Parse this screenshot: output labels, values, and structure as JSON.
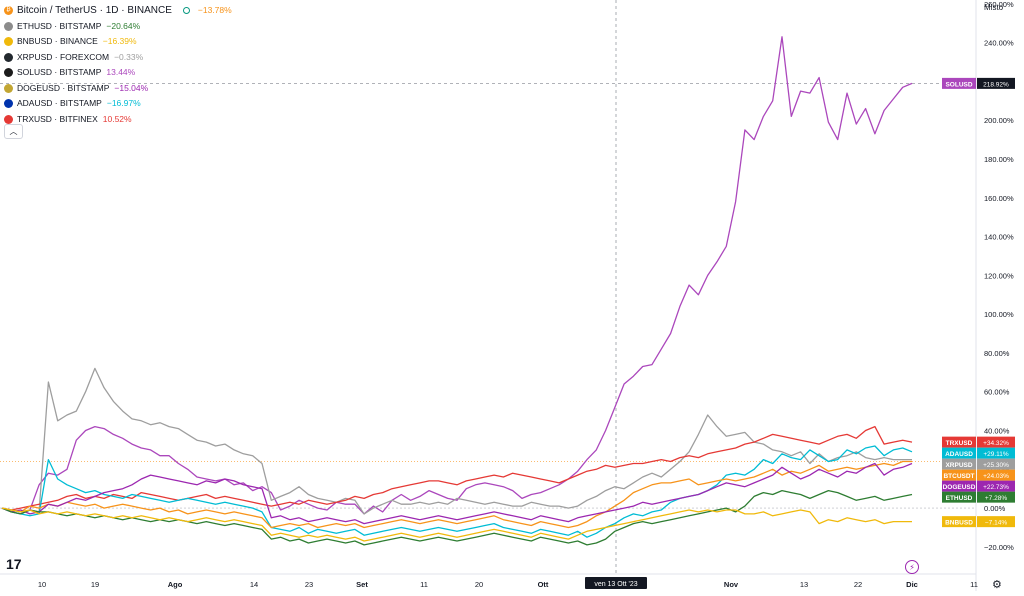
{
  "legend": {
    "main": {
      "name": "Bitcoin / TetherUS · 1D · BINANCE",
      "change": "−13.78%",
      "color": "#f7931a"
    },
    "items": [
      {
        "icon": "ethereum-icon",
        "name": "ETHUSD · BITSTAMP",
        "change": "−20.64%",
        "color": "#2e7d32",
        "icon_color": "#8c8c8c"
      },
      {
        "icon": "binance-icon",
        "name": "BNBUSD · BINANCE",
        "change": "−16.39%",
        "color": "#f0b90b",
        "icon_color": "#f0b90b"
      },
      {
        "icon": "xrp-icon",
        "name": "XRPUSD · FOREXCOM",
        "change": "−0.33%",
        "color": "#9e9e9e",
        "icon_color": "#23292f"
      },
      {
        "icon": "solana-icon",
        "name": "SOLUSD · BITSTAMP",
        "change": "13.44%",
        "color": "#ab47bc",
        "icon_color": "#1c1c1c"
      },
      {
        "icon": "dogecoin-icon",
        "name": "DOGEUSD · BITSTAMP",
        "change": "−15.04%",
        "color": "#9c27b0",
        "icon_color": "#c2a633"
      },
      {
        "icon": "cardano-icon",
        "name": "ADAUSD · BITSTAMP",
        "change": "−16.97%",
        "color": "#00bcd4",
        "icon_color": "#0033ad"
      },
      {
        "icon": "tron-icon",
        "name": "TRXUSD · BITFINEX",
        "change": "10.52%",
        "color": "#e53935",
        "icon_color": "#e53935"
      }
    ]
  },
  "scale_mode": "Misto",
  "crosshair_date": "ven 13 Ott '23",
  "chart_data": {
    "type": "line",
    "x_ticks": [
      "10",
      "19",
      "Ago",
      "14",
      "23",
      "Set",
      "11",
      "20",
      "Ott",
      "Nov",
      "13",
      "22",
      "Dic",
      "11"
    ],
    "y_ticks": [
      "260.00%",
      "240.00%",
      "220.00%",
      "200.00%",
      "180.00%",
      "160.00%",
      "140.00%",
      "120.00%",
      "100.00%",
      "80.00%",
      "60.00%",
      "40.00%",
      "20.00%",
      "0.00%",
      "−20.00%"
    ],
    "ylim": [
      -34,
      262
    ],
    "y_axis_unit": "%",
    "series": [
      {
        "name": "SOLUSD",
        "color": "#ab47bc",
        "label": "SOLUSD",
        "value_label": "218.92%",
        "values": [
          0,
          -2,
          -3,
          -1,
          12,
          18,
          17,
          20,
          35,
          40,
          42,
          41,
          38,
          36,
          33,
          31,
          30,
          27,
          27,
          23,
          20,
          16,
          15,
          14,
          15,
          12,
          13,
          9,
          11,
          8,
          -1,
          1,
          4,
          2,
          0,
          -1,
          3,
          2,
          2,
          -3,
          1,
          -2,
          4,
          7,
          4,
          6,
          9,
          7,
          5,
          4,
          10,
          12,
          13,
          12,
          11,
          9,
          5,
          7,
          8,
          10,
          12,
          15,
          19,
          25,
          30,
          40,
          52,
          64,
          68,
          73,
          74,
          82,
          90,
          104,
          115,
          110,
          120,
          127,
          135,
          158,
          195,
          190,
          202,
          210,
          243,
          202,
          215,
          214,
          222,
          199,
          190,
          214,
          198,
          206,
          193,
          205,
          211,
          217,
          219
        ]
      },
      {
        "name": "XRPUSD",
        "color": "#9e9e9e",
        "label": "XRPUSD",
        "value_label": "+25.30%",
        "values": [
          0,
          -1,
          -2,
          -1,
          -2,
          65,
          45,
          48,
          50,
          60,
          72,
          62,
          55,
          50,
          46,
          45,
          43,
          44,
          42,
          41,
          38,
          35,
          34,
          32,
          33,
          30,
          28,
          27,
          23,
          4,
          6,
          8,
          11,
          7,
          5,
          4,
          3,
          5,
          4,
          -3,
          0,
          2,
          4,
          2,
          2,
          3,
          2,
          3,
          2,
          5,
          4,
          3,
          2,
          3,
          2,
          1,
          1,
          3,
          2,
          1,
          1,
          0,
          1,
          4,
          6,
          9,
          11,
          10,
          13,
          16,
          18,
          16,
          20,
          24,
          29,
          38,
          48,
          42,
          37,
          38,
          39,
          34,
          33,
          30,
          29,
          27,
          29,
          23,
          28,
          24,
          26,
          27,
          29,
          26,
          25,
          26,
          25,
          25,
          25
        ]
      },
      {
        "name": "TRXUSD",
        "color": "#e53935",
        "label": "TRXUSD",
        "value_label": "+34.32%",
        "values": [
          0,
          -1,
          0,
          1,
          2,
          3,
          4,
          6,
          7,
          5,
          6,
          5,
          7,
          6,
          5,
          8,
          7,
          6,
          5,
          4,
          5,
          6,
          7,
          5,
          6,
          5,
          4,
          3,
          2,
          1,
          2,
          3,
          2,
          4,
          3,
          2,
          3,
          4,
          6,
          5,
          7,
          8,
          10,
          11,
          12,
          13,
          14,
          14,
          13,
          12,
          14,
          15,
          16,
          17,
          16,
          18,
          17,
          16,
          15,
          14,
          13,
          15,
          17,
          19,
          20,
          22,
          21,
          22,
          23,
          23,
          24,
          25,
          24,
          26,
          27,
          26,
          28,
          29,
          30,
          31,
          33,
          34,
          36,
          38,
          37,
          36,
          35,
          34,
          33,
          35,
          37,
          38,
          36,
          40,
          42,
          33,
          34,
          35,
          34
        ]
      },
      {
        "name": "ADAUSD",
        "color": "#00bcd4",
        "label": "ADAUSD",
        "value_label": "+29.11%",
        "values": [
          0,
          -2,
          -3,
          -4,
          -3,
          25,
          15,
          12,
          10,
          8,
          9,
          7,
          6,
          5,
          7,
          6,
          5,
          4,
          3,
          4,
          5,
          4,
          3,
          2,
          3,
          2,
          1,
          0,
          -2,
          -10,
          -11,
          -12,
          -10,
          -13,
          -11,
          -12,
          -13,
          -12,
          -11,
          -14,
          -13,
          -12,
          -11,
          -10,
          -11,
          -12,
          -11,
          -10,
          -11,
          -12,
          -11,
          -10,
          -9,
          -8,
          -10,
          -11,
          -12,
          -13,
          -11,
          -12,
          -13,
          -14,
          -12,
          -15,
          -13,
          -10,
          -8,
          -5,
          -3,
          -4,
          -2,
          -1,
          3,
          5,
          6,
          7,
          9,
          12,
          17,
          18,
          17,
          20,
          25,
          23,
          28,
          26,
          25,
          30,
          27,
          24,
          25,
          30,
          28,
          31,
          32,
          27,
          30,
          31,
          29
        ]
      },
      {
        "name": "BTCUSDT",
        "color": "#f7931a",
        "label": "BTCUSDT",
        "value_label": "+24.03%",
        "values": [
          0,
          -1,
          -2,
          1,
          0,
          2,
          1,
          3,
          2,
          1,
          2,
          0,
          1,
          2,
          1,
          0,
          -1,
          0,
          -2,
          -1,
          -3,
          -2,
          -1,
          -2,
          -3,
          -2,
          -3,
          -4,
          -5,
          -10,
          -9,
          -8,
          -9,
          -8,
          -10,
          -9,
          -8,
          -9,
          -8,
          -10,
          -9,
          -8,
          -7,
          -6,
          -7,
          -8,
          -7,
          -6,
          -7,
          -8,
          -7,
          -6,
          -5,
          -4,
          -6,
          -7,
          -8,
          -9,
          -7,
          -8,
          -9,
          -10,
          -9,
          -7,
          -4,
          -2,
          1,
          4,
          8,
          10,
          12,
          13,
          13,
          14,
          15,
          12,
          13,
          14,
          15,
          14,
          15,
          16,
          18,
          20,
          17,
          19,
          18,
          20,
          22,
          19,
          20,
          21,
          20,
          21,
          22,
          23,
          22,
          24,
          24
        ]
      },
      {
        "name": "DOGEUSD",
        "color": "#9c27b0",
        "label": "DOGEUSD",
        "value_label": "+22.73%",
        "values": [
          0,
          -2,
          -1,
          -3,
          -2,
          2,
          1,
          3,
          5,
          4,
          6,
          8,
          9,
          10,
          12,
          15,
          17,
          16,
          15,
          14,
          13,
          12,
          14,
          13,
          15,
          14,
          12,
          11,
          10,
          -5,
          -4,
          -6,
          -5,
          -7,
          -6,
          -5,
          -6,
          -7,
          -6,
          -8,
          -7,
          -6,
          -5,
          -4,
          -5,
          -6,
          -5,
          -4,
          -5,
          -6,
          -5,
          -4,
          -3,
          -2,
          -3,
          -4,
          -5,
          -6,
          -4,
          -5,
          -6,
          -7,
          -5,
          -4,
          -3,
          -2,
          -1,
          0,
          1,
          3,
          2,
          3,
          4,
          5,
          6,
          7,
          9,
          11,
          13,
          12,
          11,
          13,
          15,
          17,
          21,
          18,
          15,
          17,
          20,
          18,
          16,
          19,
          18,
          21,
          23,
          17,
          20,
          21,
          23
        ]
      },
      {
        "name": "ETHUSD",
        "color": "#2e7d32",
        "label": "ETHUSD",
        "value_label": "+7.28%",
        "values": [
          0,
          -2,
          -3,
          -1,
          -2,
          -2,
          -3,
          -4,
          -3,
          -4,
          -5,
          -4,
          -5,
          -6,
          -5,
          -6,
          -7,
          -6,
          -7,
          -6,
          -7,
          -8,
          -7,
          -8,
          -9,
          -8,
          -9,
          -10,
          -11,
          -16,
          -15,
          -17,
          -16,
          -18,
          -17,
          -16,
          -17,
          -18,
          -17,
          -19,
          -18,
          -17,
          -16,
          -15,
          -16,
          -17,
          -16,
          -15,
          -16,
          -17,
          -16,
          -15,
          -14,
          -13,
          -14,
          -15,
          -16,
          -17,
          -15,
          -16,
          -17,
          -18,
          -17,
          -19,
          -18,
          -16,
          -12,
          -10,
          -8,
          -7,
          -8,
          -7,
          -6,
          -5,
          -4,
          -3,
          -2,
          -1,
          0,
          -2,
          1,
          6,
          8,
          7,
          9,
          8,
          7,
          5,
          7,
          9,
          8,
          6,
          4,
          5,
          6,
          4,
          5,
          6,
          7
        ]
      },
      {
        "name": "BNBUSD",
        "color": "#f0b90b",
        "label": "BNBUSD",
        "value_label": "−7.14%",
        "values": [
          0,
          -1,
          -2,
          -1,
          -3,
          -2,
          -3,
          -2,
          -3,
          -4,
          -3,
          -4,
          -5,
          -4,
          -5,
          -4,
          -5,
          -6,
          -5,
          -6,
          -7,
          -6,
          -5,
          -6,
          -7,
          -6,
          -7,
          -8,
          -9,
          -14,
          -13,
          -14,
          -15,
          -14,
          -15,
          -14,
          -15,
          -16,
          -15,
          -17,
          -16,
          -15,
          -14,
          -13,
          -14,
          -15,
          -14,
          -13,
          -14,
          -15,
          -14,
          -13,
          -12,
          -11,
          -12,
          -13,
          -14,
          -15,
          -13,
          -14,
          -15,
          -16,
          -14,
          -12,
          -11,
          -10,
          -9,
          -8,
          -7,
          -6,
          -5,
          -4,
          -3,
          -2,
          -1,
          -2,
          -1,
          -2,
          -1,
          -1,
          -3,
          -3,
          -2,
          -4,
          -3,
          -2,
          -1,
          -2,
          -8,
          -6,
          -7,
          -5,
          -6,
          -7,
          -6,
          -8,
          -7,
          -7,
          -7
        ]
      }
    ]
  }
}
